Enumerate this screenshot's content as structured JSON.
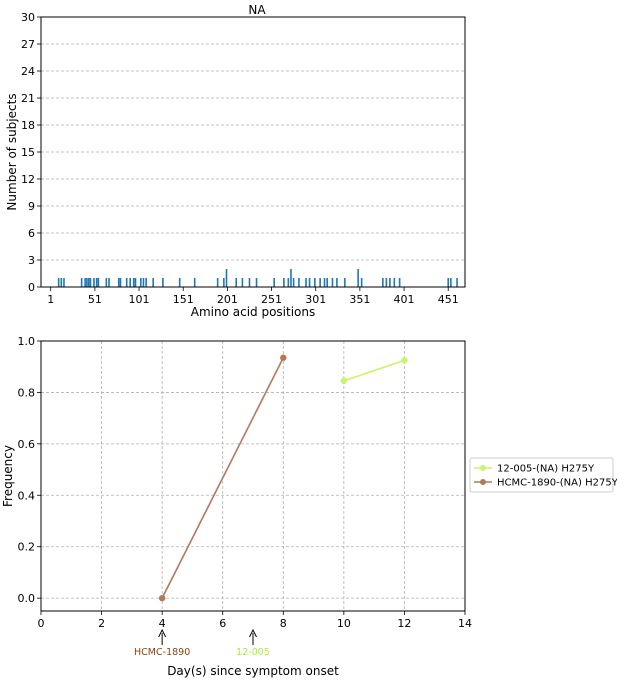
{
  "chart_data": [
    {
      "type": "bar",
      "title": "NA",
      "xlabel": "Amino acid positions",
      "ylabel": "Number of subjects",
      "xlim": [
        -10,
        470
      ],
      "ylim": [
        0,
        30
      ],
      "xticks": [
        "1",
        "51",
        "101",
        "151",
        "201",
        "251",
        "301",
        "351",
        "401",
        "451"
      ],
      "xtick_values": [
        1,
        51,
        101,
        151,
        201,
        251,
        301,
        351,
        401,
        451
      ],
      "yticks": [
        "0",
        "3",
        "6",
        "9",
        "12",
        "15",
        "18",
        "21",
        "24",
        "27",
        "30"
      ],
      "ytick_values": [
        0,
        3,
        6,
        9,
        12,
        15,
        18,
        21,
        24,
        27,
        30
      ],
      "grid": "y",
      "color": "#1f77b4",
      "x": [
        10,
        13,
        16,
        36,
        40,
        42,
        44,
        46,
        50,
        53,
        55,
        64,
        67,
        78,
        80,
        87,
        91,
        95,
        97,
        103,
        106,
        109,
        117,
        128,
        147,
        164,
        190,
        197,
        200,
        211,
        218,
        226,
        234,
        254,
        265,
        270,
        273,
        276,
        282,
        290,
        294,
        300,
        306,
        311,
        314,
        320,
        325,
        334,
        349,
        353,
        377,
        381,
        385,
        390,
        396,
        451,
        454,
        461
      ],
      "values": [
        1,
        1,
        1,
        1,
        1,
        1,
        1,
        1,
        1,
        1,
        1,
        1,
        1,
        1,
        1,
        1,
        1,
        1,
        1,
        1,
        1,
        1,
        1,
        1,
        1,
        1,
        1,
        1,
        2,
        1,
        1,
        1,
        1,
        1,
        1,
        1,
        2,
        1,
        1,
        1,
        1,
        1,
        1,
        1,
        1,
        1,
        1,
        1,
        2,
        1,
        1,
        1,
        1,
        1,
        1,
        1,
        1,
        1
      ]
    },
    {
      "type": "line",
      "xlabel": "Day(s) since symptom onset",
      "ylabel": "Frequency",
      "xlim": [
        0,
        14
      ],
      "ylim": [
        -0.05,
        1.0
      ],
      "xticks": [
        "0",
        "2",
        "4",
        "6",
        "8",
        "10",
        "12",
        "14"
      ],
      "xtick_values": [
        0,
        2,
        4,
        6,
        8,
        10,
        12,
        14
      ],
      "yticks": [
        "0.0",
        "0.2",
        "0.4",
        "0.6",
        "0.8",
        "1.0"
      ],
      "ytick_values": [
        0.0,
        0.2,
        0.4,
        0.6,
        0.8,
        1.0
      ],
      "grid": "both",
      "legend": "outside-right",
      "series": [
        {
          "name": "12-005-(NA) H275Y",
          "color": "#c8f56a",
          "x": [
            10,
            12
          ],
          "y": [
            0.845,
            0.925
          ]
        },
        {
          "name": "HCMC-1890-(NA) H275Y",
          "color": "#b07a57",
          "x": [
            4,
            8
          ],
          "y": [
            0.0,
            0.935
          ]
        }
      ],
      "annotations": [
        {
          "text": "HCMC-1890",
          "x": 4,
          "color": "#8b4513"
        },
        {
          "text": "12-005",
          "x": 7,
          "color": "#a6f03a"
        }
      ]
    }
  ]
}
